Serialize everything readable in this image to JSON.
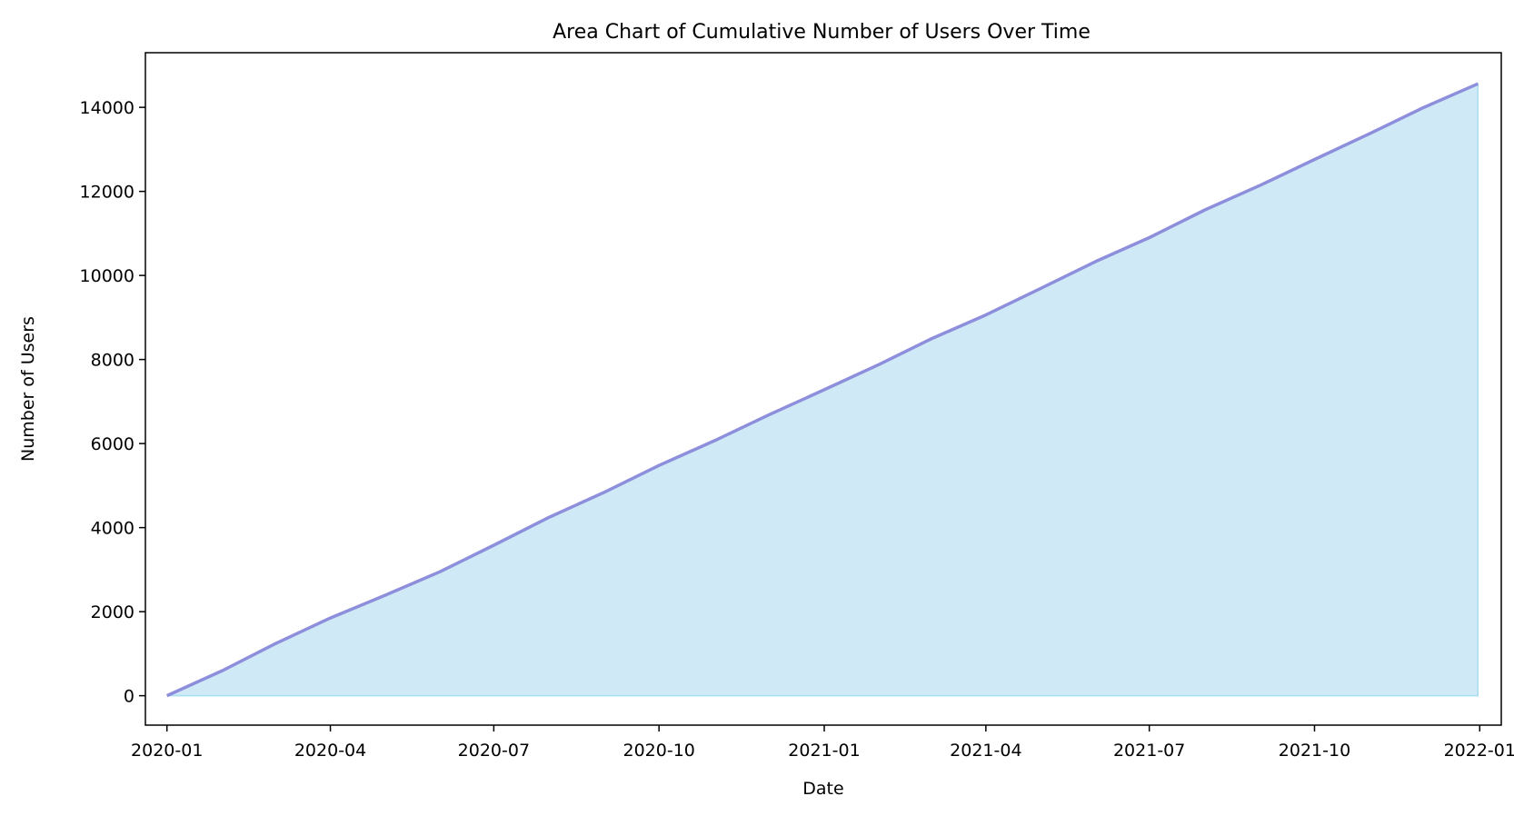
{
  "chart_data": {
    "type": "area",
    "title": "Area Chart of Cumulative Number of Users Over Time",
    "xlabel": "Date",
    "ylabel": "Number of Users",
    "x_ticks": [
      "2020-01",
      "2020-04",
      "2020-07",
      "2020-10",
      "2021-01",
      "2021-04",
      "2021-07",
      "2021-10",
      "2022-01"
    ],
    "y_ticks": [
      0,
      2000,
      4000,
      6000,
      8000,
      10000,
      12000,
      14000
    ],
    "xlim": [
      "2019-12-20",
      "2022-01-13"
    ],
    "ylim": [
      -700,
      15300
    ],
    "grid": false,
    "legend": "none",
    "colors": {
      "line": "#8e8fdc",
      "fill": "#cfe9f6",
      "fill_edge": "#a9ddf0",
      "axis": "#000000"
    },
    "series": [
      {
        "points": [
          [
            "2020-01-01",
            0
          ],
          [
            "2020-02-01",
            600
          ],
          [
            "2020-03-01",
            1230
          ],
          [
            "2020-04-01",
            1850
          ],
          [
            "2020-05-01",
            2380
          ],
          [
            "2020-06-01",
            2950
          ],
          [
            "2020-07-01",
            3580
          ],
          [
            "2020-08-01",
            4250
          ],
          [
            "2020-09-01",
            4850
          ],
          [
            "2020-10-01",
            5480
          ],
          [
            "2020-11-01",
            6070
          ],
          [
            "2020-12-01",
            6680
          ],
          [
            "2021-01-01",
            7280
          ],
          [
            "2021-02-01",
            7890
          ],
          [
            "2021-03-01",
            8480
          ],
          [
            "2021-04-01",
            9060
          ],
          [
            "2021-05-01",
            9680
          ],
          [
            "2021-06-01",
            10330
          ],
          [
            "2021-07-01",
            10900
          ],
          [
            "2021-08-01",
            11560
          ],
          [
            "2021-09-01",
            12150
          ],
          [
            "2021-10-01",
            12760
          ],
          [
            "2021-11-01",
            13380
          ],
          [
            "2021-12-01",
            14000
          ],
          [
            "2021-12-31",
            14560
          ]
        ]
      }
    ]
  }
}
